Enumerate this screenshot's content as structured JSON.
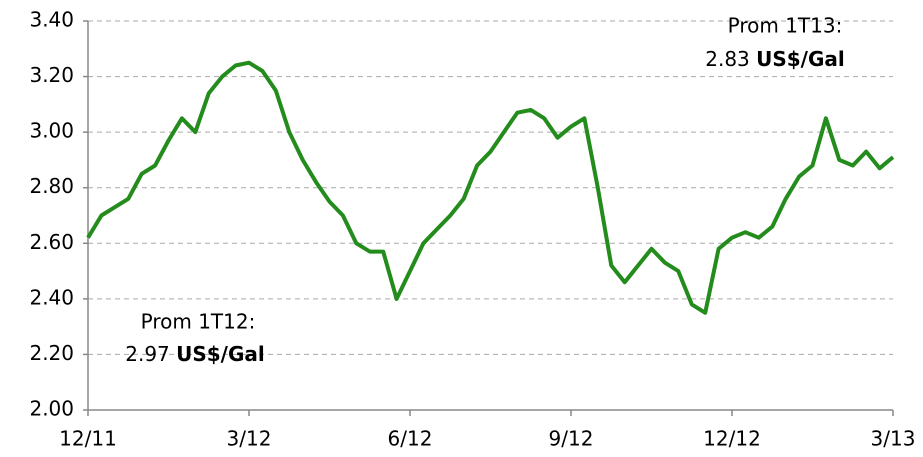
{
  "chart_data": {
    "type": "line",
    "categories": [
      "12/11",
      null,
      null,
      null,
      null,
      null,
      null,
      null,
      null,
      null,
      null,
      null,
      "3/12",
      null,
      null,
      null,
      null,
      null,
      null,
      null,
      null,
      null,
      null,
      null,
      "6/12",
      null,
      null,
      null,
      null,
      null,
      null,
      null,
      null,
      null,
      null,
      null,
      "9/12",
      null,
      null,
      null,
      null,
      null,
      null,
      null,
      null,
      null,
      null,
      null,
      "12/12",
      null,
      null,
      null,
      null,
      null,
      null,
      null,
      null,
      null,
      null,
      null,
      "3/13"
    ],
    "series": [
      {
        "color": "#238c1c",
        "values": [
          2.62,
          2.7,
          2.73,
          2.76,
          2.85,
          2.88,
          2.97,
          3.05,
          3.0,
          3.14,
          3.2,
          3.24,
          3.25,
          3.22,
          3.15,
          3.0,
          2.9,
          2.82,
          2.75,
          2.7,
          2.6,
          2.57,
          2.57,
          2.4,
          2.5,
          2.6,
          2.65,
          2.7,
          2.76,
          2.88,
          2.93,
          3.0,
          3.07,
          3.08,
          3.05,
          2.98,
          3.02,
          3.05,
          2.8,
          2.52,
          2.46,
          2.52,
          2.58,
          2.53,
          2.5,
          2.38,
          2.35,
          2.58,
          2.62,
          2.64,
          2.62,
          2.66,
          2.76,
          2.84,
          2.88,
          3.05,
          2.9,
          2.88,
          2.93,
          2.87,
          2.91
        ]
      }
    ],
    "ylim": [
      2.0,
      3.4
    ],
    "yticks": [
      {
        "value": 2.0,
        "label": "2.00"
      },
      {
        "value": 2.2,
        "label": "2.20"
      },
      {
        "value": 2.4,
        "label": "2.40"
      },
      {
        "value": 2.6,
        "label": "2.60"
      },
      {
        "value": 2.8,
        "label": "2.80"
      },
      {
        "value": 3.0,
        "label": "3.00"
      },
      {
        "value": 3.2,
        "label": "3.20"
      },
      {
        "value": 3.4,
        "label": "3.40"
      }
    ],
    "grid": true,
    "annotations": [
      {
        "title": "Prom 1T12:",
        "value": "2.97",
        "unit": "US$/Gal"
      },
      {
        "title": "Prom 1T13:",
        "value": "2.83",
        "unit": "US$/Gal"
      }
    ]
  }
}
